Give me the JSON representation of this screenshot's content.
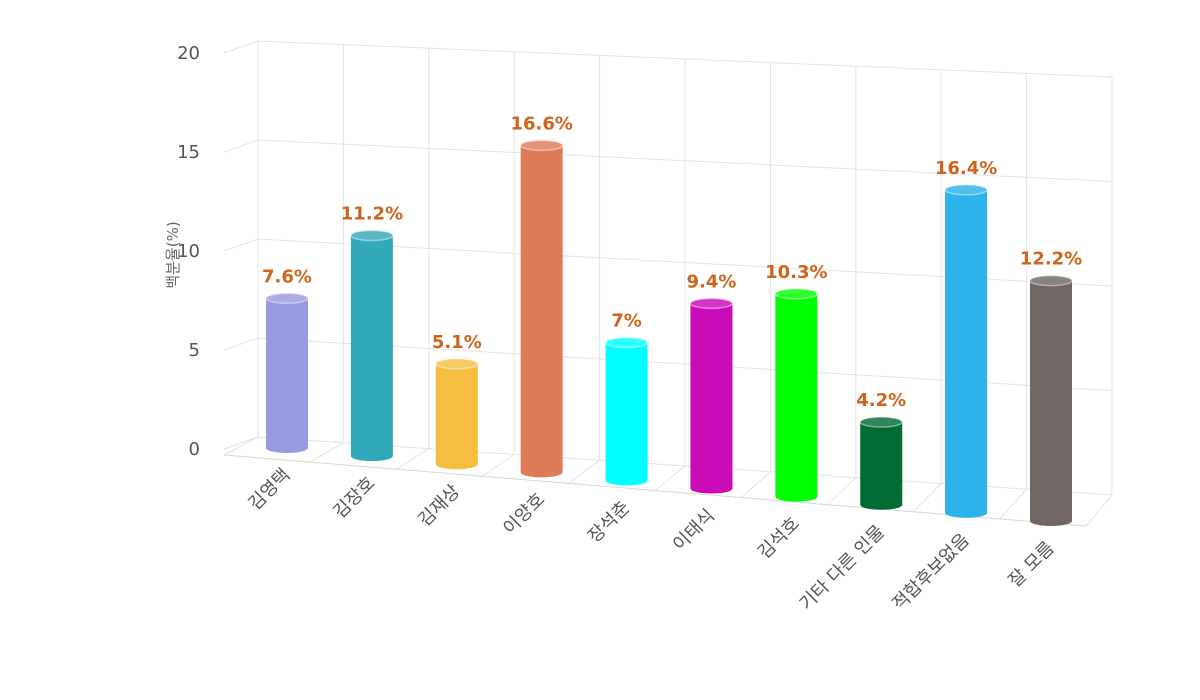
{
  "chart_data": {
    "type": "bar",
    "title": "",
    "xlabel": "",
    "ylabel": "백분율(%)",
    "ylim": [
      0,
      20
    ],
    "yticks": [
      0,
      5,
      10,
      15,
      20
    ],
    "grid": true,
    "categories": [
      "김영택",
      "김장호",
      "김재상",
      "이양호",
      "장석춘",
      "이태식",
      "김석호",
      "기타 다른 인물",
      "적합후보없음",
      "잘 모름"
    ],
    "values": [
      7.6,
      11.2,
      5.1,
      16.6,
      7,
      9.4,
      10.3,
      4.2,
      16.4,
      12.2
    ],
    "data_labels": [
      "7.6%",
      "11.2%",
      "5.1%",
      "16.6%",
      "7%",
      "9.4%",
      "10.3%",
      "4.2%",
      "16.4%",
      "12.2%"
    ],
    "colors": [
      "#9a9ae2",
      "#31a9b8",
      "#f5be41",
      "#e07b5a",
      "#00ffff",
      "#c90bb8",
      "#00ff00",
      "#006b33",
      "#2db3ec",
      "#706765"
    ],
    "label_color": "#d0641c"
  }
}
